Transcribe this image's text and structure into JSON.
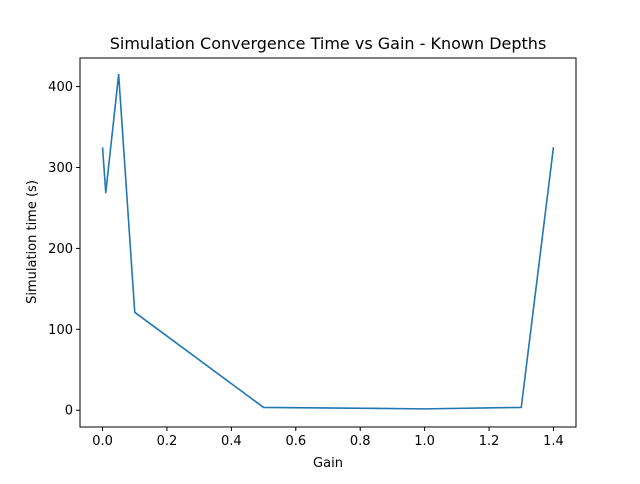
{
  "chart_data": {
    "type": "line",
    "title": "Simulation Convergence Time vs Gain - Known Depths",
    "xlabel": "Gain",
    "ylabel": "Simulation time (s)",
    "xlim": [
      -0.07,
      1.47
    ],
    "ylim": [
      -20.7,
      435.3
    ],
    "xticks": [
      0.0,
      0.2,
      0.4,
      0.6,
      0.8,
      1.0,
      1.2,
      1.4
    ],
    "xtick_labels": [
      "0.0",
      "0.2",
      "0.4",
      "0.6",
      "0.8",
      "1.0",
      "1.2",
      "1.4"
    ],
    "yticks": [
      0,
      100,
      200,
      300,
      400
    ],
    "ytick_labels": [
      "0",
      "100",
      "200",
      "300",
      "400"
    ],
    "grid": false,
    "series": [
      {
        "color": "#1f77b4",
        "x": [
          0.0,
          0.01,
          0.05,
          0.1,
          0.5,
          1.0,
          1.3,
          1.4
        ],
        "y": [
          325,
          269,
          415,
          121,
          3.5,
          1.7,
          3.5,
          325
        ]
      }
    ]
  }
}
